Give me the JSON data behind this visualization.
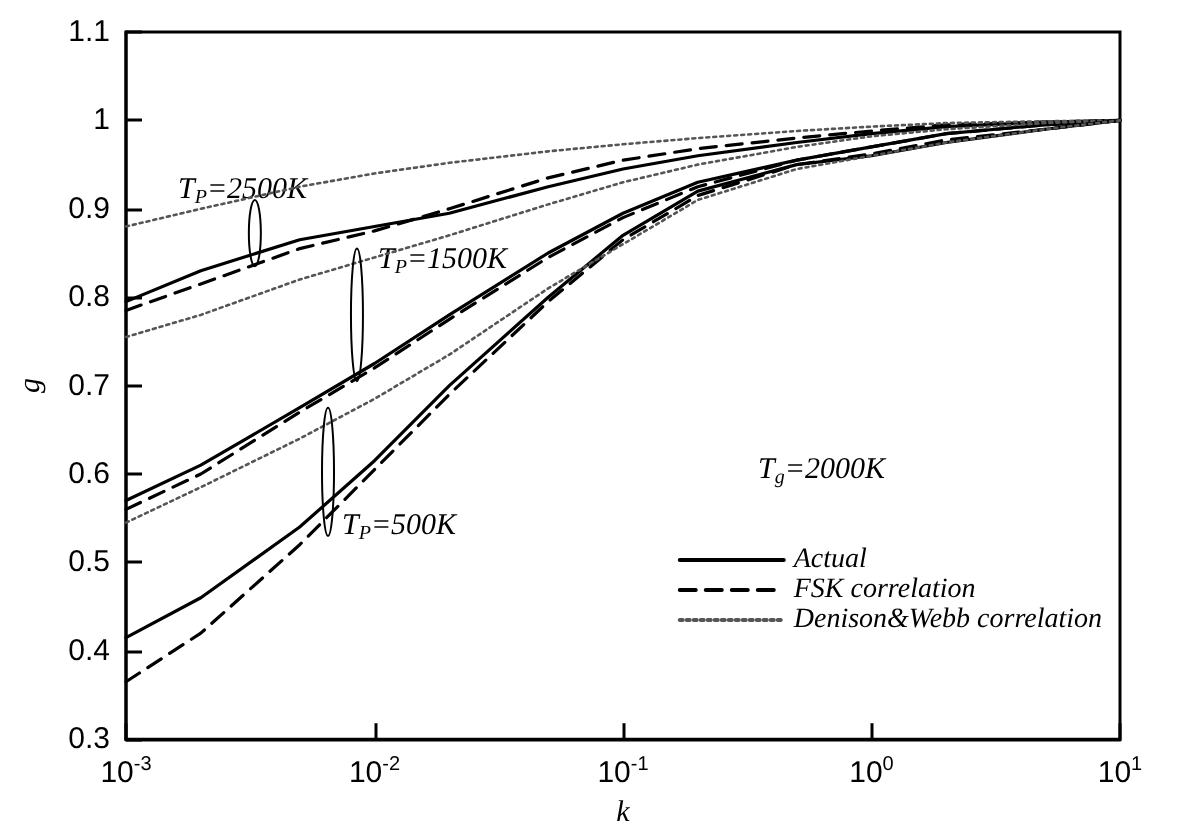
{
  "chart_data": {
    "type": "line",
    "xlabel": "k",
    "ylabel": "g",
    "x": [
      0.001,
      0.002,
      0.005,
      0.01,
      0.02,
      0.05,
      0.1,
      0.2,
      0.5,
      1,
      2,
      5,
      10
    ],
    "series": [
      {
        "name": "Actual",
        "color": "#000000",
        "line_style": "solid",
        "values": [
          0.795,
          0.83,
          0.865,
          0.88,
          0.895,
          0.925,
          0.945,
          0.96,
          0.975,
          0.985,
          0.993,
          0.998,
          1.0
        ]
      },
      {
        "name": "FSK correlation",
        "color": "#000000",
        "line_style": "dashed",
        "values": [
          0.785,
          0.815,
          0.855,
          0.875,
          0.9,
          0.935,
          0.955,
          0.968,
          0.98,
          0.988,
          0.995,
          0.998,
          1.0
        ]
      },
      {
        "name": "Denison&Webb correlation",
        "color": "#555555",
        "line_style": "dotted",
        "values": [
          0.88,
          0.9,
          0.925,
          0.94,
          0.952,
          0.965,
          0.973,
          0.98,
          0.988,
          0.993,
          0.997,
          0.999,
          1.0
        ]
      },
      {
        "color": "#000000",
        "line_style": "solid",
        "values": [
          0.57,
          0.61,
          0.675,
          0.725,
          0.78,
          0.85,
          0.895,
          0.93,
          0.955,
          0.97,
          0.985,
          0.995,
          1.0
        ]
      },
      {
        "color": "#000000",
        "line_style": "dashed",
        "values": [
          0.56,
          0.6,
          0.67,
          0.72,
          0.775,
          0.845,
          0.89,
          0.925,
          0.955,
          0.97,
          0.985,
          0.995,
          1.0
        ]
      },
      {
        "color": "#555555",
        "line_style": "dotted",
        "values": [
          0.755,
          0.78,
          0.82,
          0.845,
          0.87,
          0.905,
          0.93,
          0.95,
          0.97,
          0.982,
          0.99,
          0.997,
          1.0
        ]
      },
      {
        "color": "#000000",
        "line_style": "solid",
        "values": [
          0.415,
          0.46,
          0.54,
          0.615,
          0.7,
          0.8,
          0.87,
          0.92,
          0.95,
          0.96,
          0.975,
          0.99,
          1.0
        ]
      },
      {
        "color": "#000000",
        "line_style": "dashed",
        "values": [
          0.365,
          0.42,
          0.52,
          0.605,
          0.69,
          0.795,
          0.865,
          0.915,
          0.95,
          0.962,
          0.978,
          0.99,
          1.0
        ]
      },
      {
        "color": "#555555",
        "line_style": "dotted",
        "values": [
          0.545,
          0.585,
          0.64,
          0.685,
          0.735,
          0.81,
          0.86,
          0.91,
          0.945,
          0.96,
          0.975,
          0.99,
          1.0
        ]
      }
    ],
    "annotations": [
      "T$_{P}$=2500K",
      "T$_{P}$=1500K",
      "T$_{P}$=500K",
      "T$_{g}$=2000K"
    ],
    "xlim": [
      0.001,
      10
    ],
    "ylim": [
      0.3,
      1.1
    ],
    "xticks": [
      {
        "value": 0.001,
        "label": "10$^{-3}$"
      },
      {
        "value": 0.01,
        "label": "10$^{-2}$"
      },
      {
        "value": 0.1,
        "label": "10$^{-1}$"
      },
      {
        "value": 1,
        "label": "10$^{0}$"
      },
      {
        "value": 10,
        "label": "10$^{1}$"
      }
    ],
    "yticks": [
      0.3,
      0.4,
      0.5,
      0.6,
      0.7,
      0.8,
      0.9,
      1,
      1.1
    ],
    "log": "x",
    "grid": false,
    "legend": "bottom right",
    "marker": "none"
  }
}
